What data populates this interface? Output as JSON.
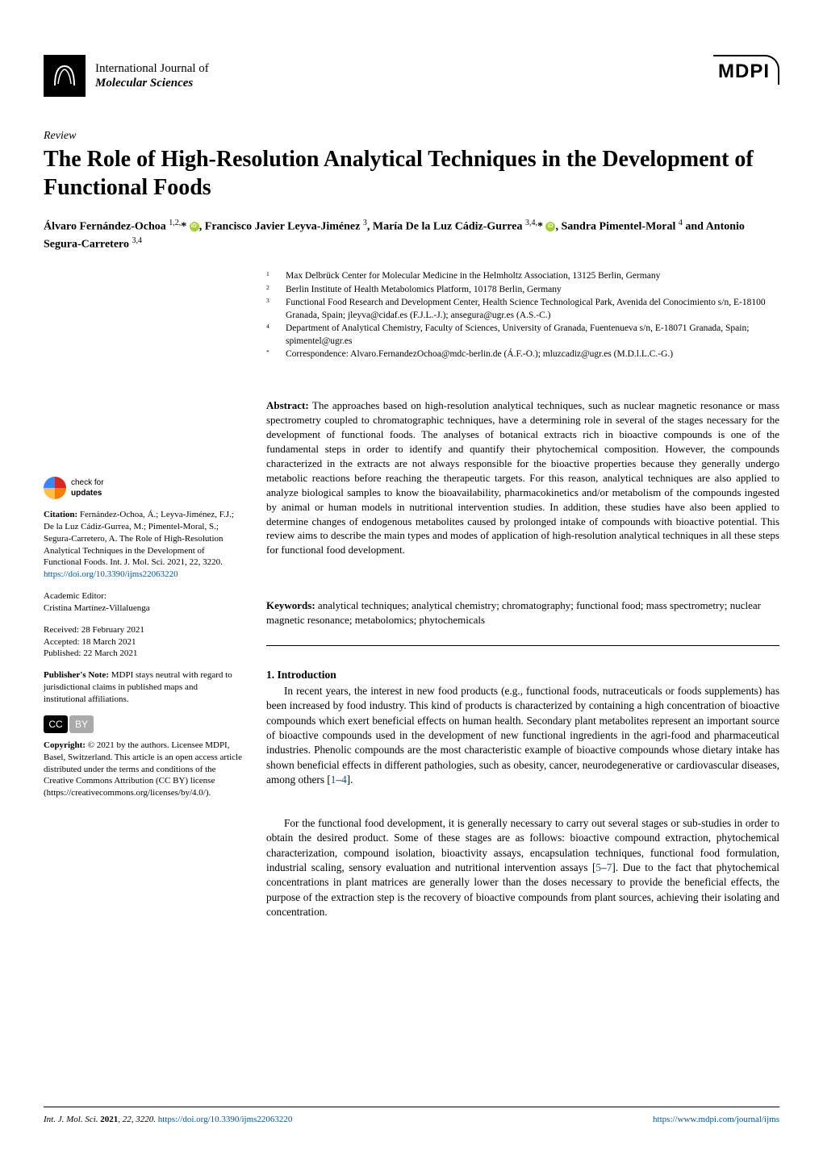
{
  "journal": {
    "line1": "International Journal of",
    "line2": "Molecular Sciences",
    "publisher_logo": "MDPI"
  },
  "article": {
    "type": "Review",
    "title": "The Role of High-Resolution Analytical Techniques in the Development of Functional Foods"
  },
  "authors_html": "Álvaro Fernández-Ochoa <sup>1,2,</sup>* <span class='orcid-icon' data-name='orcid-icon' data-interactable='false'></span>, Francisco Javier Leyva-Jiménez <sup>3</sup>, María De la Luz Cádiz-Gurrea <sup>3,4,</sup>* <span class='orcid-icon' data-name='orcid-icon' data-interactable='false'></span>, Sandra Pimentel-Moral <sup>4</sup> and Antonio Segura-Carretero <sup>3,4</sup>",
  "affiliations": [
    {
      "num": "1",
      "text": "Max Delbrück Center for Molecular Medicine in the Helmholtz Association, 13125 Berlin, Germany"
    },
    {
      "num": "2",
      "text": "Berlin Institute of Health Metabolomics Platform, 10178 Berlin, Germany"
    },
    {
      "num": "3",
      "text": "Functional Food Research and Development Center, Health Science Technological Park, Avenida del Conocimiento s/n, E-18100 Granada, Spain; jleyva@cidaf.es (F.J.L.-J.); ansegura@ugr.es (A.S.-C.)"
    },
    {
      "num": "4",
      "text": "Department of Analytical Chemistry, Faculty of Sciences, University of Granada, Fuentenueva s/n, E-18071 Granada, Spain; spimentel@ugr.es"
    },
    {
      "num": "*",
      "text": "Correspondence: Alvaro.FernandezOchoa@mdc-berlin.de (Á.F.-O.); mluzcadiz@ugr.es (M.D.l.L.C.-G.)"
    }
  ],
  "abstract": {
    "label": "Abstract:",
    "text": " The approaches based on high-resolution analytical techniques, such as nuclear magnetic resonance or mass spectrometry coupled to chromatographic techniques, have a determining role in several of the stages necessary for the development of functional foods. The analyses of botanical extracts rich in bioactive compounds is one of the fundamental steps in order to identify and quantify their phytochemical composition. However, the compounds characterized in the extracts are not always responsible for the bioactive properties because they generally undergo metabolic reactions before reaching the therapeutic targets. For this reason, analytical techniques are also applied to analyze biological samples to know the bioavailability, pharmacokinetics and/or metabolism of the compounds ingested by animal or human models in nutritional intervention studies. In addition, these studies have also been applied to determine changes of endogenous metabolites caused by prolonged intake of compounds with bioactive potential. This review aims to describe the main types and modes of application of high-resolution analytical techniques in all these steps for functional food development."
  },
  "keywords": {
    "label": "Keywords:",
    "text": " analytical techniques; analytical chemistry; chromatography; functional food; mass spectrometry; nuclear magnetic resonance; metabolomics; phytochemicals"
  },
  "sidebar": {
    "check_updates_l1": "check for",
    "check_updates_l2": "updates",
    "citation_label": "Citation:",
    "citation": " Fernández-Ochoa, Á.; Leyva-Jiménez, F.J.; De la Luz Cádiz-Gurrea, M.; Pimentel-Moral, S.; Segura-Carretero, A. The Role of High-Resolution Analytical Techniques in the Development of Functional Foods. Int. J. Mol. Sci. 2021, 22, 3220. ",
    "doi": "https://doi.org/10.3390/ijms22063220",
    "editor_label": "Academic Editor:",
    "editor": "Cristina Martínez-Villaluenga",
    "received": "Received: 28 February 2021",
    "accepted": "Accepted: 18 March 2021",
    "published": "Published: 22 March 2021",
    "pubnote_label": "Publisher's Note:",
    "pubnote": " MDPI stays neutral with regard to jurisdictional claims in published maps and institutional affiliations.",
    "copyright_label": "Copyright:",
    "copyright": " © 2021 by the authors. Licensee MDPI, Basel, Switzerland. This article is an open access article distributed under the terms and conditions of the Creative Commons Attribution (CC BY) license (https://creativecommons.org/licenses/by/4.0/)."
  },
  "section1": {
    "heading": "1. Introduction",
    "para1_a": "In recent years, the interest in new food products (e.g., functional foods, nutraceuticals or foods supplements) has been increased by food industry. This kind of products is characterized by containing a high concentration of bioactive compounds which exert beneficial effects on human health. Secondary plant metabolites represent an important source of bioactive compounds used in the development of new functional ingredients in the agri-food and pharmaceutical industries. Phenolic compounds are the most characteristic example of bioactive compounds whose dietary intake has shown beneficial effects in different pathologies, such as obesity, cancer, neurodegenerative or cardiovascular diseases, among others [",
    "ref1": "1",
    "ref_dash": "–",
    "ref4": "4",
    "para1_b": "].",
    "para2_a": "For the functional food development, it is generally necessary to carry out several stages or sub-studies in order to obtain the desired product. Some of these stages are as follows: bioactive compound extraction, phytochemical characterization, compound isolation, bioactivity assays, encapsulation techniques, functional food formulation, industrial scaling, sensory evaluation and nutritional intervention assays [",
    "ref5": "5",
    "ref7": "7",
    "para2_b": "]. Due to the fact that phytochemical concentrations in plant matrices are generally lower than the doses necessary to provide the beneficial effects, the purpose of the extraction step is the recovery of bioactive compounds from plant sources, achieving their isolating and concentration."
  },
  "footer": {
    "left_a": "Int. J. Mol. Sci. ",
    "left_b": "2021",
    "left_c": ", 22, 3220. ",
    "doi": "https://doi.org/10.3390/ijms22063220",
    "right": "https://www.mdpi.com/journal/ijms"
  },
  "colors": {
    "text": "#000000",
    "link": "#0b5394",
    "orcid": "#a6ce39",
    "background": "#ffffff"
  },
  "fonts": {
    "body_family": "Palatino Linotype",
    "body_size_pt": 10,
    "title_size_pt": 20,
    "sidebar_size_pt": 8
  }
}
